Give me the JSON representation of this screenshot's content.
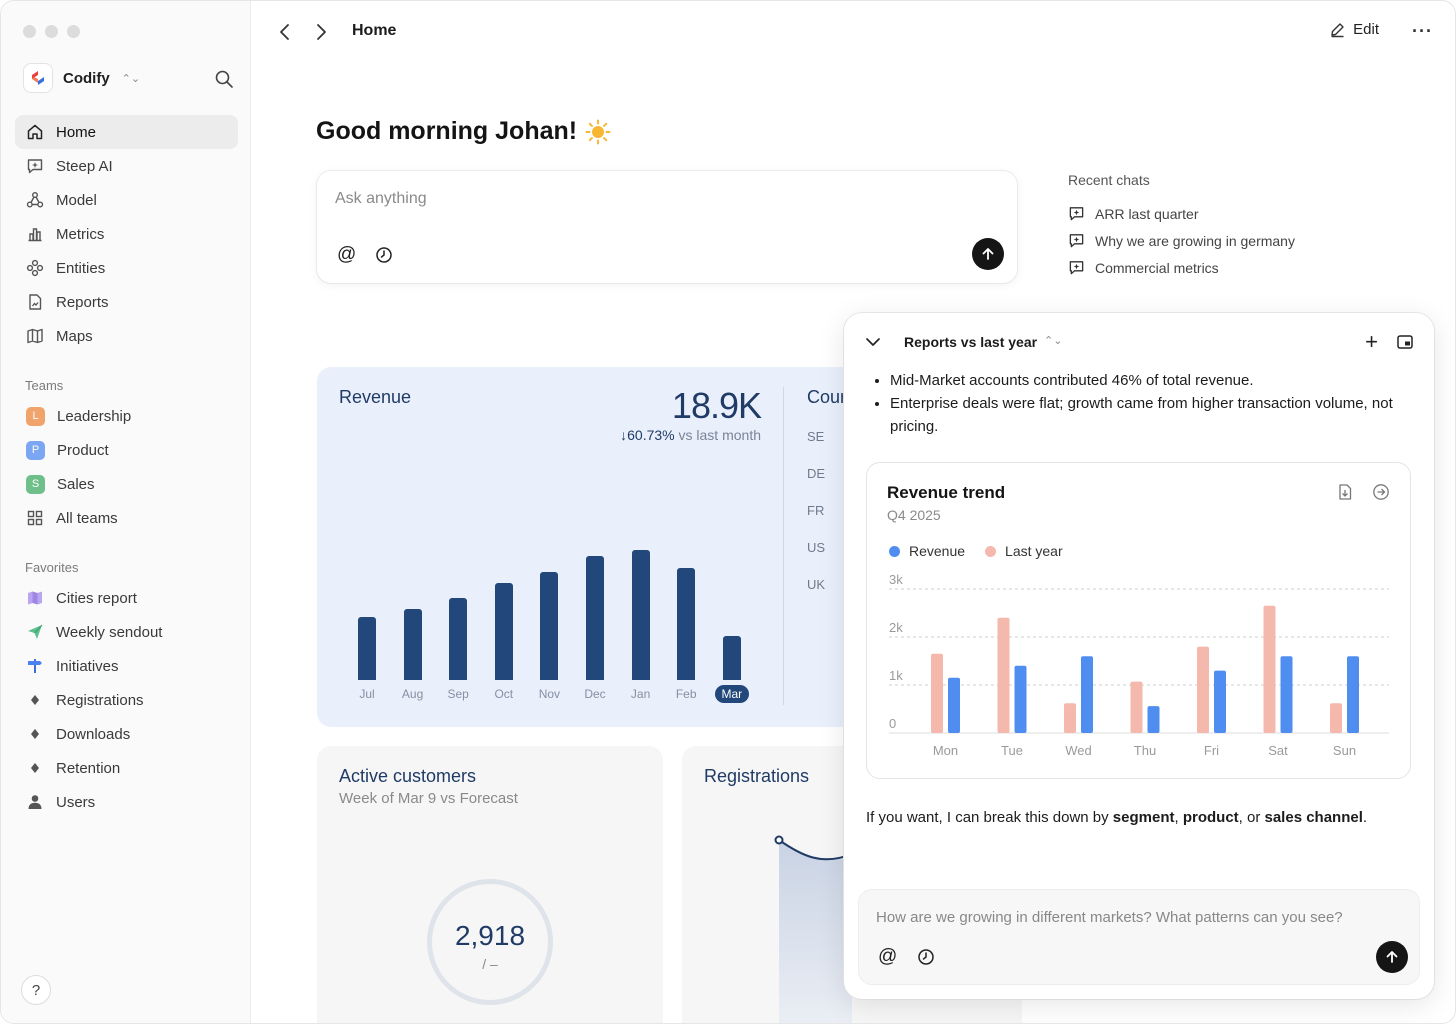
{
  "workspace": {
    "name": "Codify"
  },
  "nav": [
    {
      "label": "Home",
      "icon": "home-icon",
      "active": true
    },
    {
      "label": "Steep AI",
      "icon": "chat-sparkle-icon"
    },
    {
      "label": "Model",
      "icon": "model-icon"
    },
    {
      "label": "Metrics",
      "icon": "bar-chart-icon"
    },
    {
      "label": "Entities",
      "icon": "entities-icon"
    },
    {
      "label": "Reports",
      "icon": "report-icon"
    },
    {
      "label": "Maps",
      "icon": "map-icon"
    }
  ],
  "teams_label": "Teams",
  "teams": [
    {
      "label": "Leadership",
      "letter": "L",
      "color": "#f0a36b"
    },
    {
      "label": "Product",
      "letter": "P",
      "color": "#7aa6f2"
    },
    {
      "label": "Sales",
      "letter": "S",
      "color": "#6fbf8a"
    },
    {
      "label": "All teams",
      "icon": "grid-icon"
    }
  ],
  "favorites_label": "Favorites",
  "favorites": [
    {
      "label": "Cities report",
      "icon": "map-color-icon"
    },
    {
      "label": "Weekly sendout",
      "icon": "paper-plane-icon"
    },
    {
      "label": "Initiatives",
      "icon": "signpost-icon"
    },
    {
      "label": "Registrations",
      "icon": "diamond-icon"
    },
    {
      "label": "Downloads",
      "icon": "diamond-icon"
    },
    {
      "label": "Retention",
      "icon": "diamond-icon"
    },
    {
      "label": "Users",
      "icon": "user-icon"
    }
  ],
  "help_label": "?",
  "topbar": {
    "title": "Home",
    "edit_label": "Edit",
    "more_label": "···"
  },
  "greeting": "Good morning Johan!",
  "greeting_emoji": "☀️",
  "ask": {
    "placeholder": "Ask anything",
    "at_label": "@"
  },
  "recent": {
    "title": "Recent chats",
    "items": [
      "ARR last quarter",
      "Why we are growing in germany",
      "Commercial metrics"
    ]
  },
  "revenue": {
    "title": "Revenue",
    "value": "18.9K",
    "delta": "60.73%",
    "delta_suffix": "vs last month",
    "country_title": "Cour",
    "countries": [
      "SE",
      "DE",
      "FR",
      "US",
      "UK"
    ],
    "bar_color": "#22477a"
  },
  "active_customers": {
    "title": "Active customers",
    "subtitle": "Week of Mar 9 vs Forecast",
    "value": "2,918",
    "value_sub": "/ –"
  },
  "registrations": {
    "title": "Registrations"
  },
  "chat": {
    "title": "Reports vs last year",
    "plus_label": "+",
    "bullets": [
      "Mid-Market accounts contributed 46% of total revenue.",
      "Enterprise deals were flat; growth came from higher transaction volume, not pricing."
    ],
    "foot_prefix": "If you want, I can break this down by ",
    "foot_b1": "segment",
    "foot_sep1": ", ",
    "foot_b2": "product",
    "foot_sep2": ", or ",
    "foot_b3": "sales channel",
    "foot_end": ".",
    "input_placeholder": "How are we growing in different markets? What patterns can you see?",
    "at_label": "@"
  },
  "chart_data": [
    {
      "type": "bar",
      "title": "Revenue",
      "categories": [
        "Jul",
        "Aug",
        "Sep",
        "Oct",
        "Nov",
        "Dec",
        "Jan",
        "Feb",
        "Mar"
      ],
      "series": [
        {
          "name": "Revenue",
          "values": [
            6.3,
            7.1,
            8.2,
            9.7,
            10.8,
            12.4,
            13.0,
            11.2,
            4.4
          ]
        }
      ],
      "highlight": "Mar",
      "grid": false
    },
    {
      "type": "bar",
      "title": "Revenue trend",
      "subtitle": "Q4 2025",
      "categories": [
        "Mon",
        "Tue",
        "Wed",
        "Thu",
        "Fri",
        "Sat",
        "Sun"
      ],
      "series": [
        {
          "name": "Revenue",
          "color": "#4f8ef0",
          "values": [
            1150,
            1400,
            1600,
            560,
            1300,
            1600,
            1600
          ]
        },
        {
          "name": "Last year",
          "color": "#f4b8ac",
          "values": [
            1650,
            2400,
            620,
            1070,
            1800,
            2650,
            620
          ]
        }
      ],
      "yticks": [
        "0",
        "1k",
        "2k",
        "3k"
      ],
      "ylim": [
        0,
        3000
      ],
      "grid": true,
      "legend": "top-left"
    }
  ]
}
